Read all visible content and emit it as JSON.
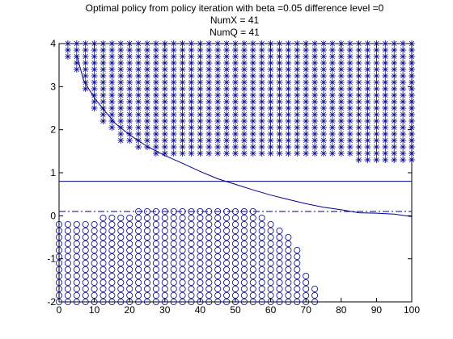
{
  "chart_data": {
    "type": "scatter",
    "title_lines": [
      "Optimal policy from policy iteration with beta =0.05 difference level =0",
      "NumX = 41",
      "NumQ = 41"
    ],
    "xlim": [
      0,
      100
    ],
    "ylim": [
      -2,
      4
    ],
    "x_ticks": [
      0,
      10,
      20,
      30,
      40,
      50,
      60,
      70,
      80,
      90,
      100
    ],
    "y_ticks": [
      -2,
      -1,
      0,
      1,
      2,
      3,
      4
    ],
    "grid": false,
    "color": "#00008b",
    "grid_spacing_x": 2.5,
    "grid_spacing_y": 0.15,
    "star_region": {
      "marker": "asterisk",
      "y_top": 4.0,
      "column_bottoms": [
        [
          2.5,
          3.7
        ],
        [
          5,
          3.4
        ],
        [
          7.5,
          2.95
        ],
        [
          10,
          2.5
        ],
        [
          12.5,
          2.2
        ],
        [
          15,
          2.05
        ],
        [
          17.5,
          1.75
        ],
        [
          20,
          1.75
        ],
        [
          22.5,
          1.6
        ],
        [
          25,
          1.6
        ],
        [
          27.5,
          1.45
        ],
        [
          30,
          1.45
        ],
        [
          32.5,
          1.45
        ],
        [
          35,
          1.45
        ],
        [
          37.5,
          1.45
        ],
        [
          40,
          1.45
        ],
        [
          42.5,
          1.45
        ],
        [
          45,
          1.45
        ],
        [
          47.5,
          1.45
        ],
        [
          50,
          1.45
        ],
        [
          52.5,
          1.45
        ],
        [
          55,
          1.45
        ],
        [
          57.5,
          1.45
        ],
        [
          60,
          1.45
        ],
        [
          62.5,
          1.45
        ],
        [
          65,
          1.45
        ],
        [
          67.5,
          1.45
        ],
        [
          70,
          1.45
        ],
        [
          72.5,
          1.45
        ],
        [
          75,
          1.45
        ],
        [
          77.5,
          1.45
        ],
        [
          80,
          1.45
        ],
        [
          82.5,
          1.45
        ],
        [
          85,
          1.3
        ],
        [
          87.5,
          1.3
        ],
        [
          90,
          1.3
        ],
        [
          92.5,
          1.3
        ],
        [
          95,
          1.3
        ],
        [
          97.5,
          1.3
        ],
        [
          100,
          1.3
        ]
      ]
    },
    "circle_region": {
      "marker": "circle",
      "y_bottom": -2.0,
      "column_tops": [
        [
          0,
          -0.2
        ],
        [
          2.5,
          -0.2
        ],
        [
          5,
          -0.2
        ],
        [
          7.5,
          -0.2
        ],
        [
          10,
          -0.2
        ],
        [
          12.5,
          -0.05
        ],
        [
          15,
          -0.05
        ],
        [
          17.5,
          -0.05
        ],
        [
          20,
          -0.05
        ],
        [
          22.5,
          0.1
        ],
        [
          25,
          0.1
        ],
        [
          27.5,
          0.1
        ],
        [
          30,
          0.1
        ],
        [
          32.5,
          0.1
        ],
        [
          35,
          0.1
        ],
        [
          37.5,
          0.1
        ],
        [
          40,
          0.1
        ],
        [
          42.5,
          0.1
        ],
        [
          45,
          0.1
        ],
        [
          47.5,
          0.1
        ],
        [
          50,
          0.1
        ],
        [
          52.5,
          0.1
        ],
        [
          55,
          0.1
        ],
        [
          57.5,
          -0.05
        ],
        [
          60,
          -0.2
        ],
        [
          62.5,
          -0.35
        ],
        [
          65,
          -0.5
        ],
        [
          67.5,
          -0.8
        ],
        [
          70,
          -1.4
        ],
        [
          72.5,
          -1.7
        ]
      ]
    },
    "curve": {
      "style": "solid",
      "points": [
        [
          5,
          3.73
        ],
        [
          7,
          3.14
        ],
        [
          10,
          2.74
        ],
        [
          13,
          2.43
        ],
        [
          16,
          2.14
        ],
        [
          20,
          1.88
        ],
        [
          25,
          1.61
        ],
        [
          30,
          1.4
        ],
        [
          35,
          1.22
        ],
        [
          40,
          1.03
        ],
        [
          45,
          0.86
        ],
        [
          50,
          0.73
        ],
        [
          55,
          0.6
        ],
        [
          60,
          0.48
        ],
        [
          65,
          0.38
        ],
        [
          70,
          0.28
        ],
        [
          75,
          0.2
        ],
        [
          80,
          0.14
        ],
        [
          85,
          0.07
        ],
        [
          90,
          0.06
        ],
        [
          95,
          0.04
        ],
        [
          100,
          -0.02
        ]
      ]
    },
    "hline_solid": {
      "y": 0.8,
      "style": "solid"
    },
    "hline_dashdot": {
      "y": 0.1,
      "style": "dash-dot"
    }
  }
}
